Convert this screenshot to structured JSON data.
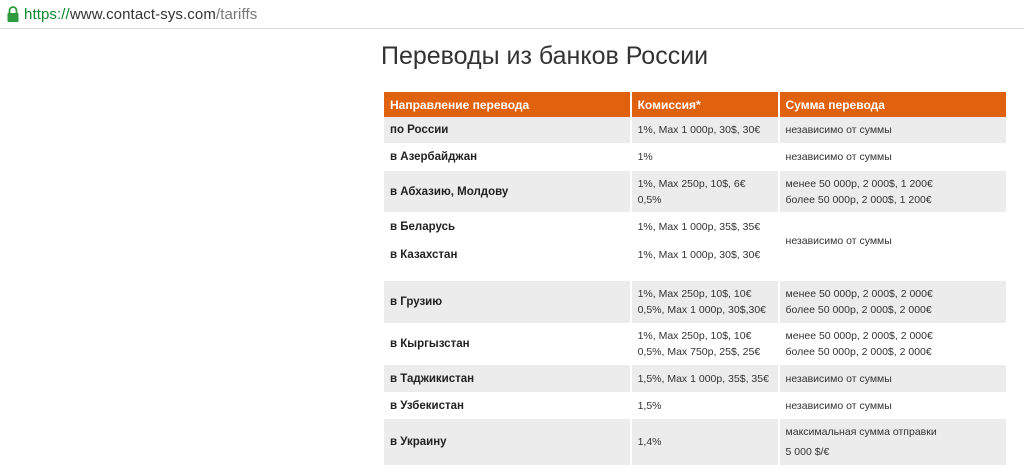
{
  "browser": {
    "url_scheme": "https://",
    "url_host": "www.contact-sys.com",
    "url_path": "/tariffs"
  },
  "page": {
    "title": "Переводы из банков России"
  },
  "table": {
    "headers": [
      "Направление перевода",
      "Комиссия*",
      "Сумма перевода"
    ],
    "rows": [
      {
        "direction": "по России",
        "commission": [
          "1%, Max 1 000р, 30$, 30€"
        ],
        "amount": [
          "независимо от суммы"
        ]
      },
      {
        "direction": "в Азербайджан",
        "commission": [
          "1%"
        ],
        "amount": [
          "независимо от суммы"
        ]
      },
      {
        "direction": "в Абхазию, Молдову",
        "commission": [
          "1%, Max 250р, 10$, 6€",
          "0,5%"
        ],
        "amount": [
          "менее 50 000р, 2 000$, 1 200€",
          "более 50 000р, 2 000$, 1 200€"
        ]
      },
      {
        "direction": "в Беларусь",
        "commission": [
          "1%, Max 1 000р, 35$, 35€"
        ]
      },
      {
        "direction": "в Казахстан",
        "commission": [
          "1%, Max 1 000р, 30$, 30€"
        ]
      },
      {
        "merged_amount": "независимо от суммы"
      },
      {
        "direction": "в Грузию",
        "commission": [
          "1%, Max 250р, 10$, 10€",
          "0,5%, Max 1 000р, 30$,30€"
        ],
        "amount": [
          "менее 50 000р, 2 000$, 2 000€",
          "более 50 000р, 2 000$, 2 000€"
        ]
      },
      {
        "direction": "в Кыргызстан",
        "commission": [
          "1%, Max 250р, 10$, 10€",
          "0,5%, Max 750р, 25$, 25€"
        ],
        "amount": [
          "менее 50 000р, 2 000$, 2 000€",
          "более 50 000р, 2 000$, 2 000€"
        ]
      },
      {
        "direction": "в Таджикистан",
        "commission": [
          "1,5%, Max 1 000р, 35$, 35€"
        ],
        "amount": [
          "независимо от суммы"
        ]
      },
      {
        "direction": "в Узбекистан",
        "commission": [
          "1,5%"
        ],
        "amount": [
          "независимо от суммы"
        ]
      },
      {
        "direction": "в Украину",
        "commission": [
          "1,4%"
        ],
        "amount": [
          "максимальная сумма отправки",
          "5 000 $/€"
        ]
      }
    ]
  }
}
